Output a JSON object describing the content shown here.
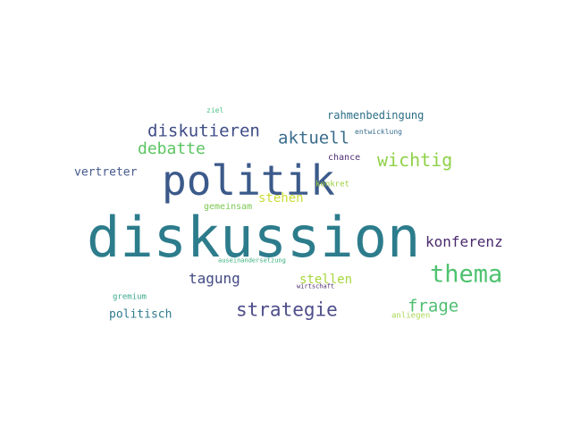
{
  "words": [
    {
      "text": "diskussion",
      "color": "#2c7c8c"
    },
    {
      "text": "politik",
      "color": "#3b5a8a"
    },
    {
      "text": "thema",
      "color": "#4ec26f"
    },
    {
      "text": "strategie",
      "color": "#4e4e8a"
    },
    {
      "text": "wichtig",
      "color": "#8fd24a"
    },
    {
      "text": "diskutieren",
      "color": "#3f4c86"
    },
    {
      "text": "aktuell",
      "color": "#3b6d8c"
    },
    {
      "text": "frage",
      "color": "#4fbf72"
    },
    {
      "text": "debatte",
      "color": "#5cc463"
    },
    {
      "text": "konferenz",
      "color": "#4a2a6e"
    },
    {
      "text": "tagung",
      "color": "#424a82"
    },
    {
      "text": "stehen",
      "color": "#c9dc34"
    },
    {
      "text": "stellen",
      "color": "#a8d63c"
    },
    {
      "text": "politisch",
      "color": "#2e7a8e"
    },
    {
      "text": "vertreter",
      "color": "#45598c"
    },
    {
      "text": "rahmenbedingung",
      "color": "#2b6d86"
    },
    {
      "text": "gemeinsam",
      "color": "#7bc852"
    },
    {
      "text": "chance",
      "color": "#4f2f72"
    },
    {
      "text": "konkret",
      "color": "#9ccf3c"
    },
    {
      "text": "gremium",
      "color": "#3aa88c"
    },
    {
      "text": "anliegen",
      "color": "#a9d653"
    },
    {
      "text": "ziel",
      "color": "#52c38a"
    },
    {
      "text": "entwicklung",
      "color": "#3a6e8f"
    },
    {
      "text": "auseinandersetzung",
      "color": "#39ad7e"
    },
    {
      "text": "wirtschaft",
      "color": "#4a2c6e"
    }
  ]
}
